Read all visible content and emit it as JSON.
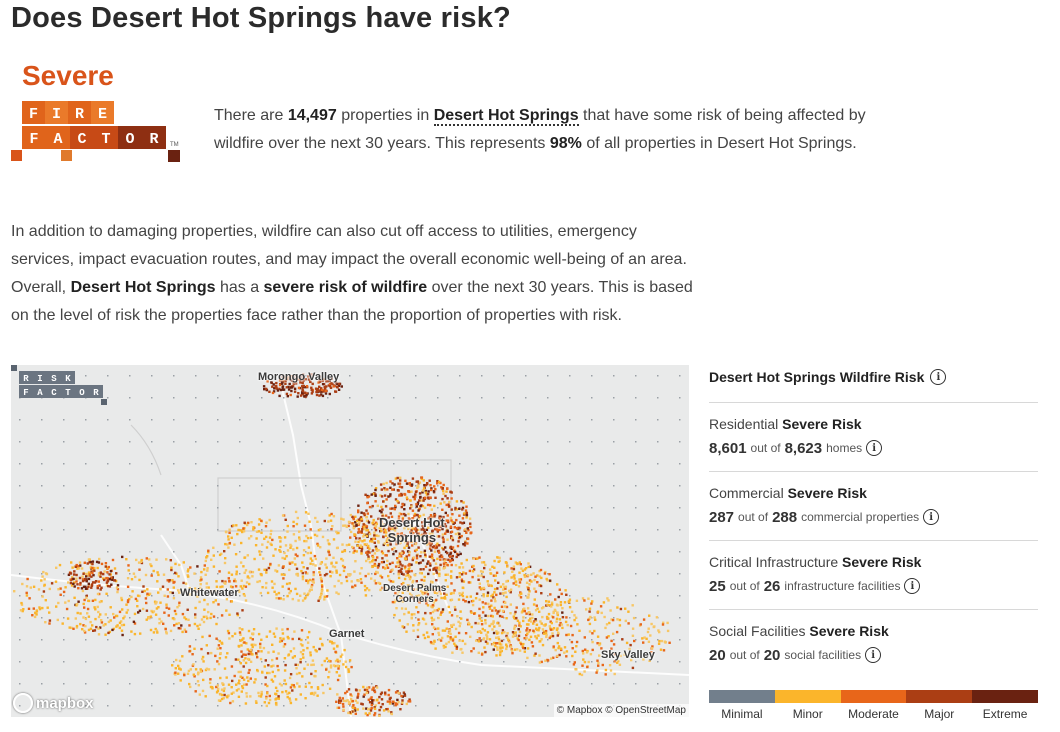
{
  "page": {
    "title": "Does Desert Hot Springs have risk?",
    "risk_level": "Severe",
    "logo": {
      "line1": [
        "F",
        "I",
        "R",
        "E"
      ],
      "line2": [
        "F",
        "A",
        "C",
        "T",
        "O",
        "R"
      ],
      "tm": "TM"
    }
  },
  "summary": {
    "pre": "There are ",
    "count": "14,497",
    "mid": " properties in ",
    "place": "Desert Hot Springs",
    "post": " that have some risk of being affected by wildfire over the next 30 years. This represents ",
    "percent": "98%",
    "end": " of all properties in Desert Hot Springs."
  },
  "paragraph": {
    "p1": "In addition to damaging properties, wildfire can also cut off access to utilities, emergency services, impact evacuation routes, and may impact the overall economic well-being of an area. Overall, ",
    "place": "Desert Hot Springs",
    "p2": " has a ",
    "risk": "severe risk of wildfire",
    "p3": " over the next 30 years. This is based on the level of risk the properties face rather than the proportion of properties with risk."
  },
  "map": {
    "labels": {
      "morongo": "Morongo Valley",
      "dhs_line1": "Desert Hot",
      "dhs_line2": "Springs",
      "dp_line1": "Desert Palms",
      "dp_line2": "Corners",
      "whitewater": "Whitewater",
      "garnet": "Garnet",
      "sky_valley": "Sky Valley"
    },
    "rf_logo": {
      "line1": [
        "R",
        "I",
        "S",
        "K"
      ],
      "line2": [
        "F",
        "A",
        "C",
        "T",
        "O",
        "R"
      ]
    },
    "mapbox": "mapbox",
    "attribution": "© Mapbox © OpenStreetMap"
  },
  "panel": {
    "title": "Desert Hot Springs Wildfire Risk",
    "stats": [
      {
        "label": "Residential",
        "level": "Severe Risk",
        "count": "8,601",
        "of": "out of",
        "total": "8,623",
        "unit": "homes"
      },
      {
        "label": "Commercial",
        "level": "Severe Risk",
        "count": "287",
        "of": "out of",
        "total": "288",
        "unit": "commercial properties"
      },
      {
        "label": "Critical Infrastructure",
        "level": "Severe Risk",
        "count": "25",
        "of": "out of",
        "total": "26",
        "unit": "infrastructure facilities"
      },
      {
        "label": "Social Facilities",
        "level": "Severe Risk",
        "count": "20",
        "of": "out of",
        "total": "20",
        "unit": "social facilities"
      }
    ]
  },
  "legend": {
    "items": [
      {
        "label": "Minimal",
        "color": "#727f8c"
      },
      {
        "label": "Minor",
        "color": "#fbb52b"
      },
      {
        "label": "Moderate",
        "color": "#e8661a"
      },
      {
        "label": "Major",
        "color": "#ab3e14"
      },
      {
        "label": "Extreme",
        "color": "#6a2211"
      }
    ]
  },
  "colors": {
    "accent": "#d9541a",
    "logo_orange": "#e0641b",
    "logo_dark": "#8e2f12"
  }
}
